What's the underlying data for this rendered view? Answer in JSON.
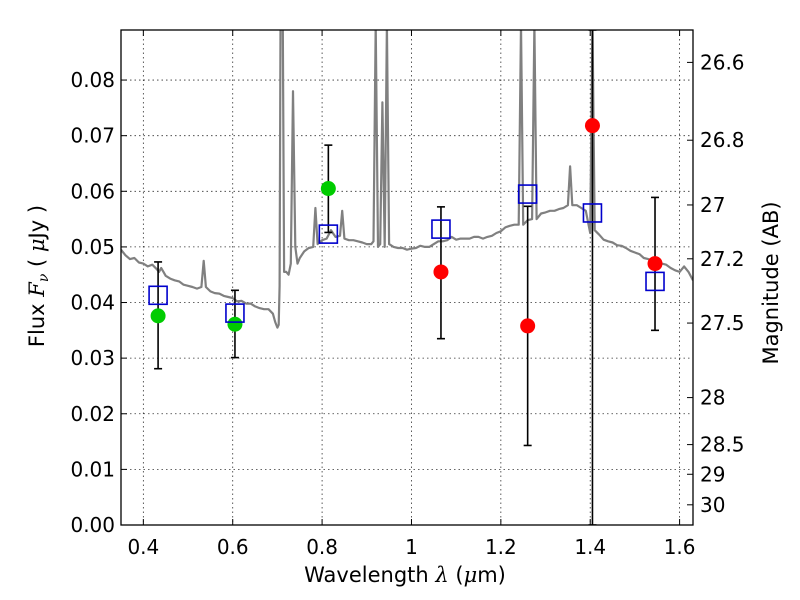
{
  "chart_data": {
    "type": "scatter",
    "xlabel": "Wavelength  λ (μm)",
    "ylabel": "Flux  Fν  ( μJy )",
    "ylabel_right": "Magnitude (AB)",
    "xlim": [
      0.35,
      1.63
    ],
    "ylim": [
      0.0,
      0.089
    ],
    "grid": true,
    "x_ticks": [
      0.4,
      0.6,
      0.8,
      1.0,
      1.2,
      1.4,
      1.6
    ],
    "x_tick_labels": [
      "0.4",
      "0.6",
      "0.8",
      "1",
      "1.2",
      "1.4",
      "1.6"
    ],
    "y_ticks": [
      0.0,
      0.01,
      0.02,
      0.03,
      0.04,
      0.05,
      0.06,
      0.07,
      0.08
    ],
    "y_tick_labels": [
      "0.00",
      "0.01",
      "0.02",
      "0.03",
      "0.04",
      "0.05",
      "0.06",
      "0.07",
      "0.08"
    ],
    "right_ticks": [
      {
        "mag": 26.6,
        "label": "26.6"
      },
      {
        "mag": 26.8,
        "label": "26.8"
      },
      {
        "mag": 27.0,
        "label": "27"
      },
      {
        "mag": 27.2,
        "label": "27.2"
      },
      {
        "mag": 27.5,
        "label": "27.5"
      },
      {
        "mag": 28.0,
        "label": "28"
      },
      {
        "mag": 28.5,
        "label": "28.5"
      },
      {
        "mag": 29.0,
        "label": "29"
      },
      {
        "mag": 30.0,
        "label": "30"
      }
    ],
    "colors": {
      "model_line": "#808080",
      "model_points": "#0000cc",
      "detections": "#00cc00",
      "non_detections": "#ff0000",
      "error_bars": "#000000"
    },
    "series": [
      {
        "kind": "line",
        "points": [
          [
            0.35,
            0.0495
          ],
          [
            0.36,
            0.0485
          ],
          [
            0.37,
            0.0478
          ],
          [
            0.38,
            0.048
          ],
          [
            0.39,
            0.0472
          ],
          [
            0.4,
            0.047
          ],
          [
            0.41,
            0.0465
          ],
          [
            0.42,
            0.0468
          ],
          [
            0.43,
            0.046
          ],
          [
            0.435,
            0.0455
          ],
          [
            0.44,
            0.0462
          ],
          [
            0.445,
            0.0455
          ],
          [
            0.45,
            0.0448
          ],
          [
            0.46,
            0.0443
          ],
          [
            0.47,
            0.044
          ],
          [
            0.48,
            0.0438
          ],
          [
            0.49,
            0.0432
          ],
          [
            0.5,
            0.043
          ],
          [
            0.51,
            0.0428
          ],
          [
            0.52,
            0.0425
          ],
          [
            0.53,
            0.0428
          ],
          [
            0.535,
            0.0475
          ],
          [
            0.54,
            0.0428
          ],
          [
            0.55,
            0.042
          ],
          [
            0.56,
            0.0417
          ],
          [
            0.57,
            0.0416
          ],
          [
            0.58,
            0.0412
          ],
          [
            0.59,
            0.041
          ],
          [
            0.6,
            0.0408
          ],
          [
            0.61,
            0.0402
          ],
          [
            0.62,
            0.0403
          ],
          [
            0.63,
            0.0398
          ],
          [
            0.64,
            0.0398
          ],
          [
            0.65,
            0.0393
          ],
          [
            0.66,
            0.039
          ],
          [
            0.67,
            0.0388
          ],
          [
            0.68,
            0.0388
          ],
          [
            0.69,
            0.038
          ],
          [
            0.695,
            0.0365
          ],
          [
            0.7,
            0.0355
          ],
          [
            0.703,
            0.036
          ],
          [
            0.705,
            0.043
          ],
          [
            0.707,
            0.09
          ],
          [
            0.712,
            0.09
          ],
          [
            0.715,
            0.0455
          ],
          [
            0.72,
            0.0455
          ],
          [
            0.725,
            0.045
          ],
          [
            0.73,
            0.047
          ],
          [
            0.735,
            0.078
          ],
          [
            0.74,
            0.05
          ],
          [
            0.745,
            0.047
          ],
          [
            0.75,
            0.048
          ],
          [
            0.76,
            0.0492
          ],
          [
            0.77,
            0.0498
          ],
          [
            0.78,
            0.05
          ],
          [
            0.785,
            0.057
          ],
          [
            0.79,
            0.0505
          ],
          [
            0.8,
            0.0512
          ],
          [
            0.81,
            0.0515
          ],
          [
            0.82,
            0.053
          ],
          [
            0.83,
            0.0518
          ],
          [
            0.84,
            0.052
          ],
          [
            0.845,
            0.0565
          ],
          [
            0.85,
            0.0515
          ],
          [
            0.86,
            0.0512
          ],
          [
            0.87,
            0.0512
          ],
          [
            0.88,
            0.051
          ],
          [
            0.89,
            0.0508
          ],
          [
            0.9,
            0.0505
          ],
          [
            0.91,
            0.0505
          ],
          [
            0.915,
            0.051
          ],
          [
            0.92,
            0.09
          ],
          [
            0.925,
            0.05
          ],
          [
            0.93,
            0.0505
          ],
          [
            0.935,
            0.076
          ],
          [
            0.94,
            0.05
          ],
          [
            0.945,
            0.09
          ],
          [
            0.95,
            0.0505
          ],
          [
            0.96,
            0.05
          ],
          [
            0.97,
            0.0498
          ],
          [
            0.98,
            0.0498
          ],
          [
            0.99,
            0.0495
          ],
          [
            1.0,
            0.0497
          ],
          [
            1.01,
            0.0498
          ],
          [
            1.02,
            0.0502
          ],
          [
            1.03,
            0.05
          ],
          [
            1.04,
            0.05
          ],
          [
            1.05,
            0.0505
          ],
          [
            1.06,
            0.051
          ],
          [
            1.07,
            0.051
          ],
          [
            1.08,
            0.0512
          ],
          [
            1.09,
            0.0518
          ],
          [
            1.1,
            0.0513
          ],
          [
            1.11,
            0.0515
          ],
          [
            1.12,
            0.0515
          ],
          [
            1.13,
            0.0515
          ],
          [
            1.14,
            0.0518
          ],
          [
            1.15,
            0.0518
          ],
          [
            1.16,
            0.0515
          ],
          [
            1.17,
            0.0518
          ],
          [
            1.18,
            0.052
          ],
          [
            1.19,
            0.0525
          ],
          [
            1.2,
            0.0528
          ],
          [
            1.21,
            0.0535
          ],
          [
            1.22,
            0.0538
          ],
          [
            1.23,
            0.054
          ],
          [
            1.24,
            0.054
          ],
          [
            1.245,
            0.09
          ],
          [
            1.25,
            0.054
          ],
          [
            1.26,
            0.0548
          ],
          [
            1.27,
            0.055
          ],
          [
            1.275,
            0.09
          ],
          [
            1.28,
            0.055
          ],
          [
            1.29,
            0.056
          ],
          [
            1.3,
            0.0562
          ],
          [
            1.31,
            0.0565
          ],
          [
            1.32,
            0.0565
          ],
          [
            1.33,
            0.0568
          ],
          [
            1.34,
            0.057
          ],
          [
            1.35,
            0.0575
          ],
          [
            1.355,
            0.0645
          ],
          [
            1.36,
            0.0575
          ],
          [
            1.37,
            0.0575
          ],
          [
            1.38,
            0.057
          ],
          [
            1.39,
            0.0565
          ],
          [
            1.4,
            0.0525
          ],
          [
            1.405,
            0.09
          ],
          [
            1.41,
            0.053
          ],
          [
            1.42,
            0.0522
          ],
          [
            1.43,
            0.0513
          ],
          [
            1.44,
            0.051
          ],
          [
            1.45,
            0.0508
          ],
          [
            1.46,
            0.0503
          ],
          [
            1.47,
            0.0502
          ],
          [
            1.48,
            0.0498
          ],
          [
            1.49,
            0.0493
          ],
          [
            1.5,
            0.049
          ],
          [
            1.51,
            0.0487
          ],
          [
            1.52,
            0.048
          ],
          [
            1.53,
            0.0478
          ],
          [
            1.54,
            0.0475
          ],
          [
            1.55,
            0.0472
          ],
          [
            1.56,
            0.047
          ],
          [
            1.57,
            0.0468
          ],
          [
            1.58,
            0.0462
          ],
          [
            1.59,
            0.0458
          ],
          [
            1.6,
            0.0455
          ],
          [
            1.61,
            0.0465
          ],
          [
            1.62,
            0.0455
          ],
          [
            1.63,
            0.044
          ]
        ]
      },
      {
        "kind": "model_points",
        "points": [
          [
            0.433,
            0.0413
          ],
          [
            0.605,
            0.0381
          ],
          [
            0.814,
            0.0523
          ],
          [
            1.066,
            0.0532
          ],
          [
            1.26,
            0.0595
          ],
          [
            1.405,
            0.0561
          ],
          [
            1.545,
            0.0438
          ]
        ]
      },
      {
        "kind": "detections",
        "points": [
          {
            "x": 0.433,
            "y": 0.0376,
            "err_lo": 0.0095,
            "err_hi": 0.0097
          },
          {
            "x": 0.605,
            "y": 0.0361,
            "err_lo": 0.006,
            "err_hi": 0.0061
          },
          {
            "x": 0.814,
            "y": 0.0605,
            "err_lo": 0.0079,
            "err_hi": 0.0078
          }
        ]
      },
      {
        "kind": "non_detections",
        "points": [
          {
            "x": 1.066,
            "y": 0.0455,
            "err_lo": 0.012,
            "err_hi": 0.0117
          },
          {
            "x": 1.26,
            "y": 0.0358,
            "err_lo": 0.0215,
            "err_hi": 0.0215
          },
          {
            "x": 1.405,
            "y": 0.0718,
            "err_lo": 0.0718,
            "err_hi": 0.0172
          },
          {
            "x": 1.545,
            "y": 0.047,
            "err_lo": 0.012,
            "err_hi": 0.0119
          }
        ]
      }
    ]
  }
}
